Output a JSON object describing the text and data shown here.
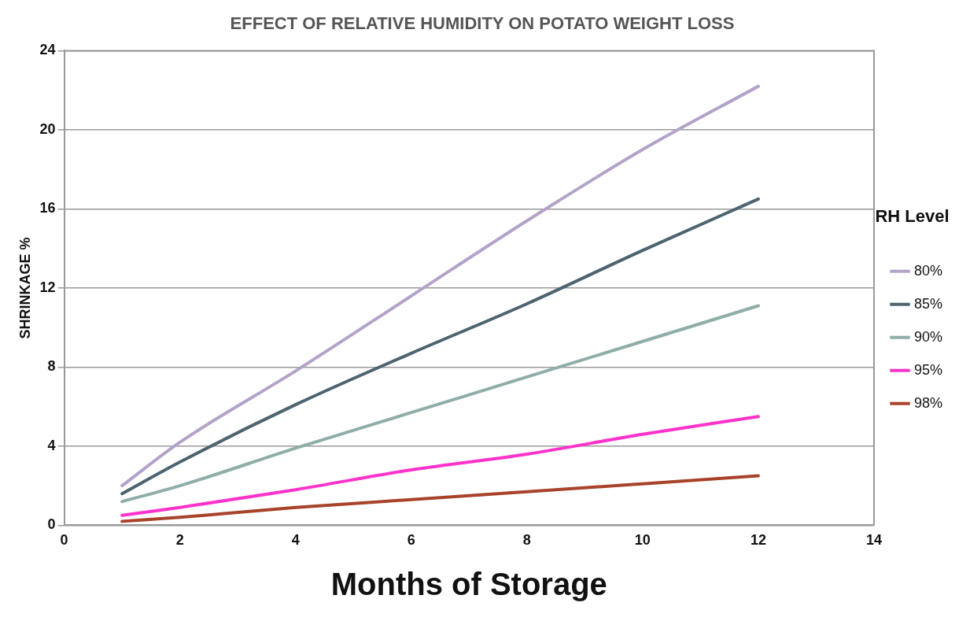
{
  "chart_data": {
    "type": "line",
    "title": "EFFECT OF RELATIVE HUMIDITY ON POTATO WEIGHT LOSS",
    "xlabel": "Months of Storage",
    "ylabel": "SHRINKAGE %",
    "legend_title": "RH Level",
    "x": [
      1,
      2,
      4,
      6,
      8,
      10,
      12
    ],
    "series": [
      {
        "name": "80%",
        "color": "#b3a3c9",
        "values": [
          2.0,
          4.2,
          7.8,
          11.6,
          15.4,
          19.0,
          22.2
        ]
      },
      {
        "name": "85%",
        "color": "#4d6470",
        "values": [
          1.6,
          3.2,
          6.1,
          8.7,
          11.2,
          13.9,
          16.5
        ]
      },
      {
        "name": "90%",
        "color": "#8fadaa",
        "values": [
          1.2,
          2.0,
          3.9,
          5.7,
          7.5,
          9.3,
          11.1
        ]
      },
      {
        "name": "95%",
        "color": "#ff33cc",
        "values": [
          0.5,
          0.9,
          1.8,
          2.8,
          3.6,
          4.6,
          5.5
        ]
      },
      {
        "name": "98%",
        "color": "#a8432a",
        "values": [
          0.2,
          0.4,
          0.9,
          1.3,
          1.7,
          2.1,
          2.5
        ]
      }
    ],
    "xlim": [
      0,
      14
    ],
    "xticks": [
      0,
      2,
      4,
      6,
      8,
      10,
      12,
      14
    ],
    "ylim": [
      0,
      24
    ],
    "yticks": [
      0,
      4,
      8,
      12,
      16,
      20,
      24
    ],
    "grid": "y",
    "legend": "right",
    "marker": "none",
    "line_style": "solid"
  }
}
